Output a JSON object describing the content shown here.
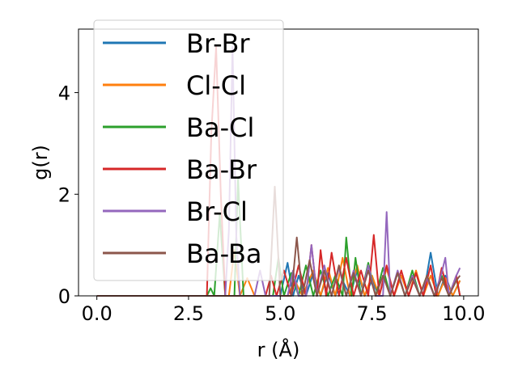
{
  "chart_data": {
    "type": "line",
    "xlabel": "r (Å)",
    "ylabel": "g(r)",
    "xlim": [
      -0.5,
      10.4
    ],
    "ylim": [
      0,
      5.25
    ],
    "xticks": [
      0.0,
      2.5,
      5.0,
      7.5,
      10.0
    ],
    "xtick_labels": [
      "0.0",
      "2.5",
      "5.0",
      "7.5",
      "10.0"
    ],
    "yticks": [
      0,
      2,
      4
    ],
    "ytick_labels": [
      "0",
      "2",
      "4"
    ],
    "grid": false,
    "legend_position": "top-left",
    "series": [
      {
        "name": "Br-Br",
        "color": "#1f77b4",
        "x": [
          0,
          2.9,
          5.0,
          5.2,
          5.35,
          5.5,
          5.7,
          5.9,
          6.1,
          6.3,
          6.5,
          6.7,
          6.9,
          7.1,
          7.3,
          7.5,
          7.7,
          7.9,
          8.1,
          8.3,
          8.5,
          8.7,
          8.9,
          9.1,
          9.3,
          9.5,
          9.7,
          9.9
        ],
        "y": [
          0,
          0,
          0,
          0.65,
          0,
          0.4,
          0,
          0.45,
          0,
          0.45,
          0,
          0.3,
          0,
          0.5,
          0,
          0.3,
          0,
          0.55,
          0,
          0.4,
          0,
          0.45,
          0,
          0.85,
          0,
          0.4,
          0,
          0.3
        ]
      },
      {
        "name": "Cl-Cl",
        "color": "#ff7f0e",
        "x": [
          0,
          2.9,
          3.6,
          3.75,
          3.9,
          4.1,
          4.3,
          5.2,
          5.4,
          5.6,
          5.9,
          6.1,
          6.3,
          6.5,
          6.7,
          6.9,
          7.1,
          7.3,
          7.5,
          7.7,
          7.9,
          8.1,
          8.3,
          8.5,
          8.7,
          8.9,
          9.1,
          9.3,
          9.5,
          9.7,
          9.9
        ],
        "y": [
          0,
          0,
          0,
          0.9,
          0,
          0.35,
          0,
          0,
          0.3,
          0,
          0.5,
          0,
          0.55,
          0,
          0.75,
          0,
          0.6,
          0,
          0.4,
          0,
          0.55,
          0,
          0.4,
          0,
          0.5,
          0,
          0.4,
          0,
          0.35,
          0,
          0.3
        ]
      },
      {
        "name": "Ba-Cl",
        "color": "#2ca02c",
        "x": [
          0,
          2.9,
          3.0,
          3.1,
          3.2,
          3.35,
          3.5,
          3.75,
          3.85,
          4.0,
          4.8,
          4.95,
          5.1,
          5.3,
          5.5,
          5.7,
          5.9,
          6.1,
          6.3,
          6.5,
          6.7,
          6.8,
          6.95,
          7.05,
          7.2,
          7.4,
          7.6,
          7.8,
          8.0,
          8.2,
          8.4,
          8.6,
          8.8,
          9.0,
          9.2,
          9.4,
          9.6,
          9.8,
          9.9
        ],
        "y": [
          0,
          0,
          0,
          0.15,
          0,
          1.6,
          0,
          0,
          2.3,
          0,
          0,
          0.75,
          0,
          0.45,
          0,
          0.6,
          0,
          0.5,
          0,
          0.4,
          0,
          1.15,
          0,
          0.75,
          0,
          0.65,
          0,
          0.55,
          0,
          0.45,
          0,
          0.5,
          0,
          0.4,
          0,
          0.4,
          0,
          0.35,
          0
        ]
      },
      {
        "name": "Ba-Br",
        "color": "#d62728",
        "x": [
          0,
          3.0,
          3.12,
          3.25,
          3.38,
          3.5,
          4.6,
          4.75,
          4.9,
          5.1,
          5.3,
          5.5,
          5.7,
          5.85,
          6.0,
          6.1,
          6.25,
          6.4,
          6.6,
          6.8,
          7.0,
          7.2,
          7.4,
          7.55,
          7.7,
          7.9,
          8.1,
          8.3,
          8.5,
          8.7,
          8.9,
          9.1,
          9.25,
          9.4,
          9.6,
          9.8,
          9.9
        ],
        "y": [
          0,
          0,
          3.2,
          4.9,
          2.0,
          0,
          0,
          0.4,
          0,
          0.5,
          0,
          0.6,
          0,
          1.0,
          0,
          0.9,
          0,
          0.85,
          0,
          0.75,
          0,
          0.5,
          0,
          1.2,
          0,
          0.6,
          0,
          0.5,
          0,
          0.45,
          0,
          0.6,
          0,
          0.55,
          0,
          0.4,
          0
        ]
      },
      {
        "name": "Br-Cl",
        "color": "#9467bd",
        "x": [
          0,
          3.5,
          3.6,
          3.7,
          3.8,
          3.9,
          4.3,
          4.45,
          4.6,
          5.2,
          5.35,
          5.5,
          5.7,
          5.85,
          6.0,
          6.2,
          6.4,
          6.6,
          6.8,
          7.0,
          7.2,
          7.4,
          7.6,
          7.8,
          7.9,
          8.0,
          8.2,
          8.4,
          8.6,
          8.8,
          9.0,
          9.2,
          9.4,
          9.5,
          9.6,
          9.8,
          9.9
        ],
        "y": [
          0,
          0,
          1.3,
          4.9,
          1.2,
          0,
          0,
          0.5,
          0,
          0,
          0.5,
          0,
          0,
          1.0,
          0,
          0.6,
          0,
          0.55,
          0,
          0.5,
          0,
          0.6,
          0,
          0,
          1.65,
          0,
          0.5,
          0,
          0.4,
          0,
          0.35,
          0,
          0.45,
          0.75,
          0,
          0.4,
          0.55
        ]
      },
      {
        "name": "Ba-Ba",
        "color": "#8c564b",
        "x": [
          0,
          4.7,
          4.85,
          5.0,
          5.3,
          5.45,
          5.6,
          5.8,
          6.0,
          6.2,
          6.4,
          6.6,
          6.8,
          7.0,
          7.2,
          7.4,
          7.6,
          7.8,
          8.0,
          8.2,
          8.4,
          8.6,
          8.8,
          9.0,
          9.2,
          9.4,
          9.6,
          9.8,
          9.9
        ],
        "y": [
          0,
          0,
          2.15,
          0,
          0,
          1.15,
          0,
          0.7,
          0,
          0.5,
          0,
          0.6,
          0,
          0.45,
          0,
          0.5,
          0,
          0.4,
          0,
          0.45,
          0,
          0.35,
          0,
          0.4,
          0,
          0.35,
          0,
          0.3,
          0.4
        ]
      }
    ]
  }
}
